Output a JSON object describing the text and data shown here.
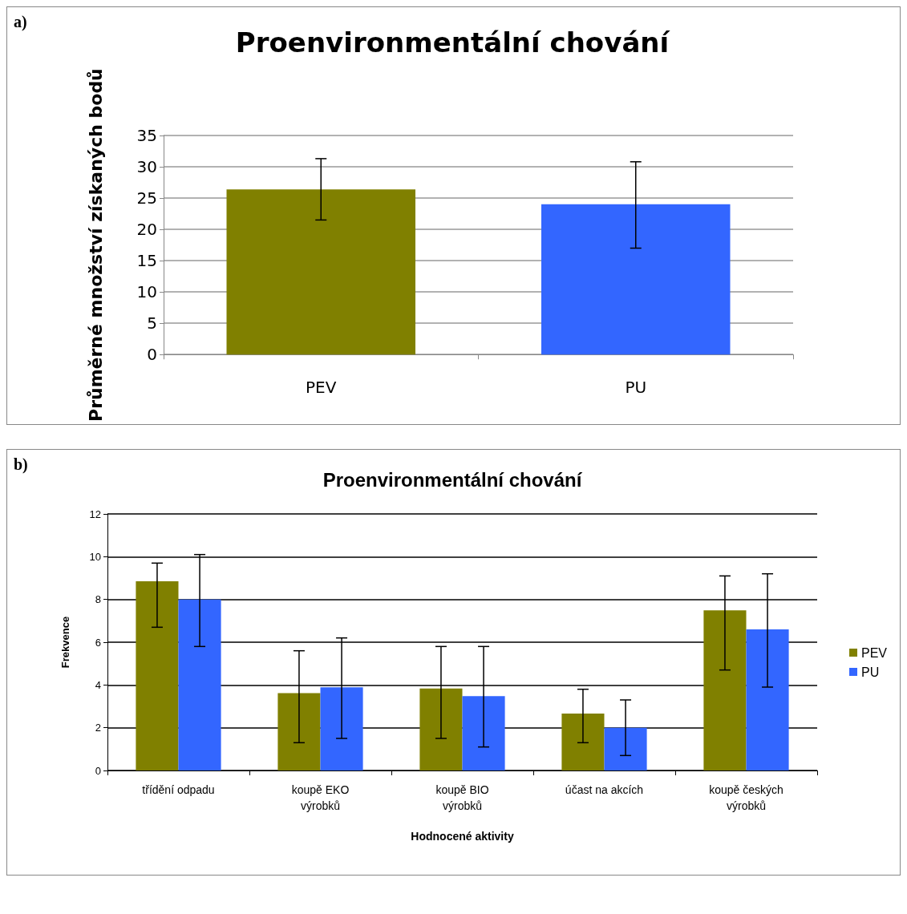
{
  "chart_data": [
    {
      "type": "bar",
      "title": "Proenvironmentální chování",
      "ylabel": "Průměrné množství získaných bodů",
      "annotations": [
        "a)"
      ],
      "categories": [
        "PEV",
        "PU"
      ],
      "values": [
        26.4,
        24.0
      ],
      "colors": [
        "#808000",
        "#3366ff"
      ],
      "errors": [
        [
          21.5,
          31.3
        ],
        [
          17.0,
          30.8
        ]
      ],
      "ylim": [
        0,
        35
      ],
      "yticks": [
        0,
        5,
        10,
        15,
        20,
        25,
        30,
        35
      ],
      "grid": "y",
      "legend": false
    },
    {
      "type": "bar",
      "title": "Proenvironmentální chování",
      "xlabel": "Hodnocené aktivity",
      "ylabel": "Frekvence",
      "annotations": [
        "b)"
      ],
      "categories": [
        "třídění odpadu",
        "koupě EKO\nvýrobků",
        "koupě BIO\nvýrobků",
        "účast na akcích",
        "koupě českých\nvýrobků"
      ],
      "series": [
        {
          "name": "PEV",
          "color": "#808000",
          "values": [
            8.85,
            3.62,
            3.83,
            2.66,
            7.49
          ],
          "errors": [
            [
              6.7,
              9.7
            ],
            [
              1.3,
              5.6
            ],
            [
              1.5,
              5.8
            ],
            [
              1.3,
              3.8
            ],
            [
              4.7,
              9.1
            ]
          ]
        },
        {
          "name": "PU",
          "color": "#3366ff",
          "values": [
            8.0,
            3.89,
            3.48,
            2.0,
            6.6
          ],
          "errors": [
            [
              5.8,
              10.1
            ],
            [
              1.5,
              6.2
            ],
            [
              1.1,
              5.8
            ],
            [
              0.7,
              3.3
            ],
            [
              3.9,
              9.2
            ]
          ]
        }
      ],
      "ylim": [
        0,
        12
      ],
      "yticks": [
        0,
        2,
        4,
        6,
        8,
        10,
        12
      ],
      "grid": "y",
      "legend": "right"
    }
  ]
}
